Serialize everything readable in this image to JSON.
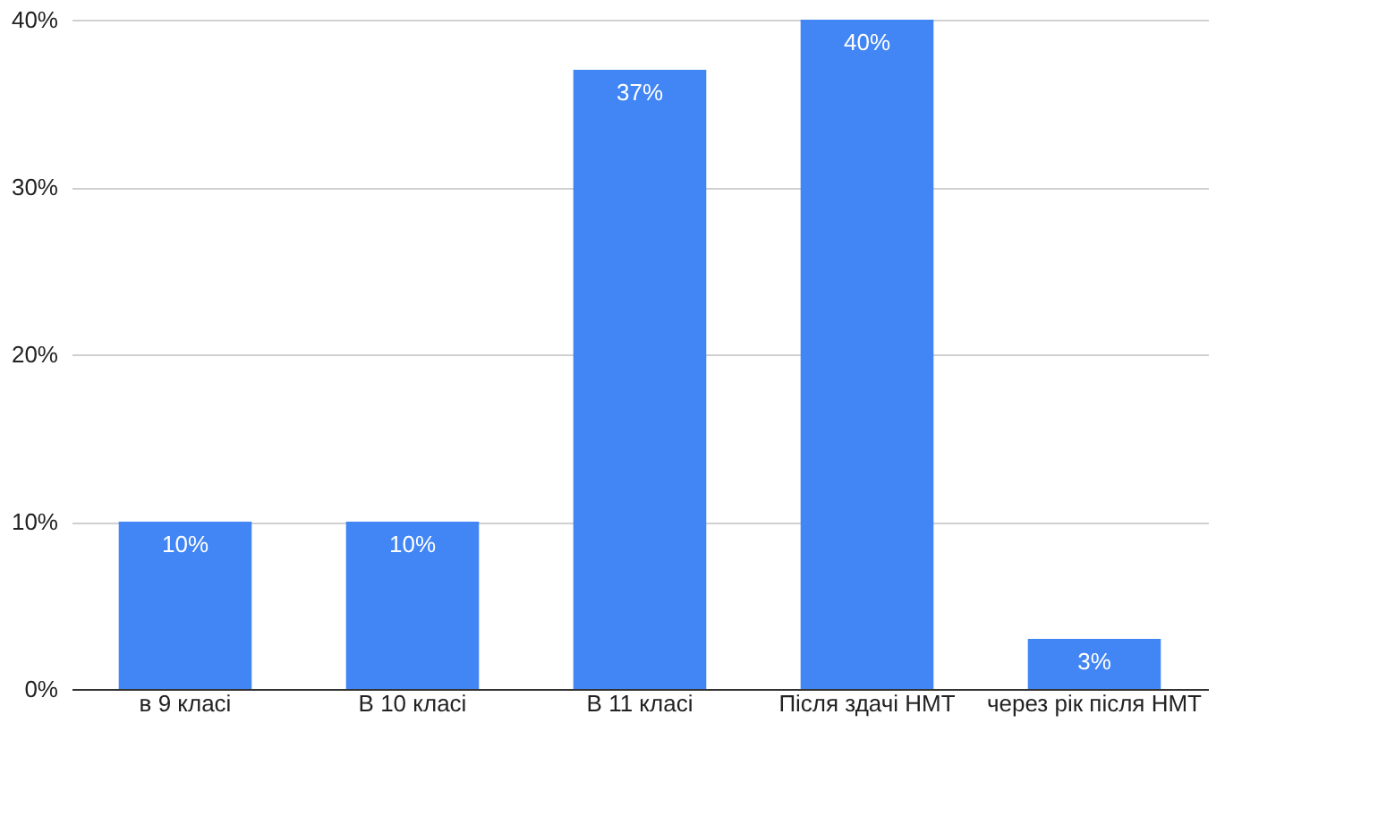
{
  "chart_data": {
    "type": "bar",
    "categories": [
      "в 9 класі",
      "В 10 класі",
      "В 11 класі",
      "Після здачі НМТ",
      "через рік після НМТ"
    ],
    "values": [
      10,
      10,
      37,
      40,
      3
    ],
    "color": "#4285f4",
    "ylim": [
      0,
      40
    ],
    "yticks": [
      {
        "value": 0,
        "label": "0%"
      },
      {
        "value": 10,
        "label": "10%"
      },
      {
        "value": 20,
        "label": "20%"
      },
      {
        "value": 30,
        "label": "30%"
      },
      {
        "value": 40,
        "label": "40%"
      }
    ],
    "value_labels": [
      "10%",
      "10%",
      "37%",
      "40%",
      "3%"
    ],
    "grid": "y"
  }
}
